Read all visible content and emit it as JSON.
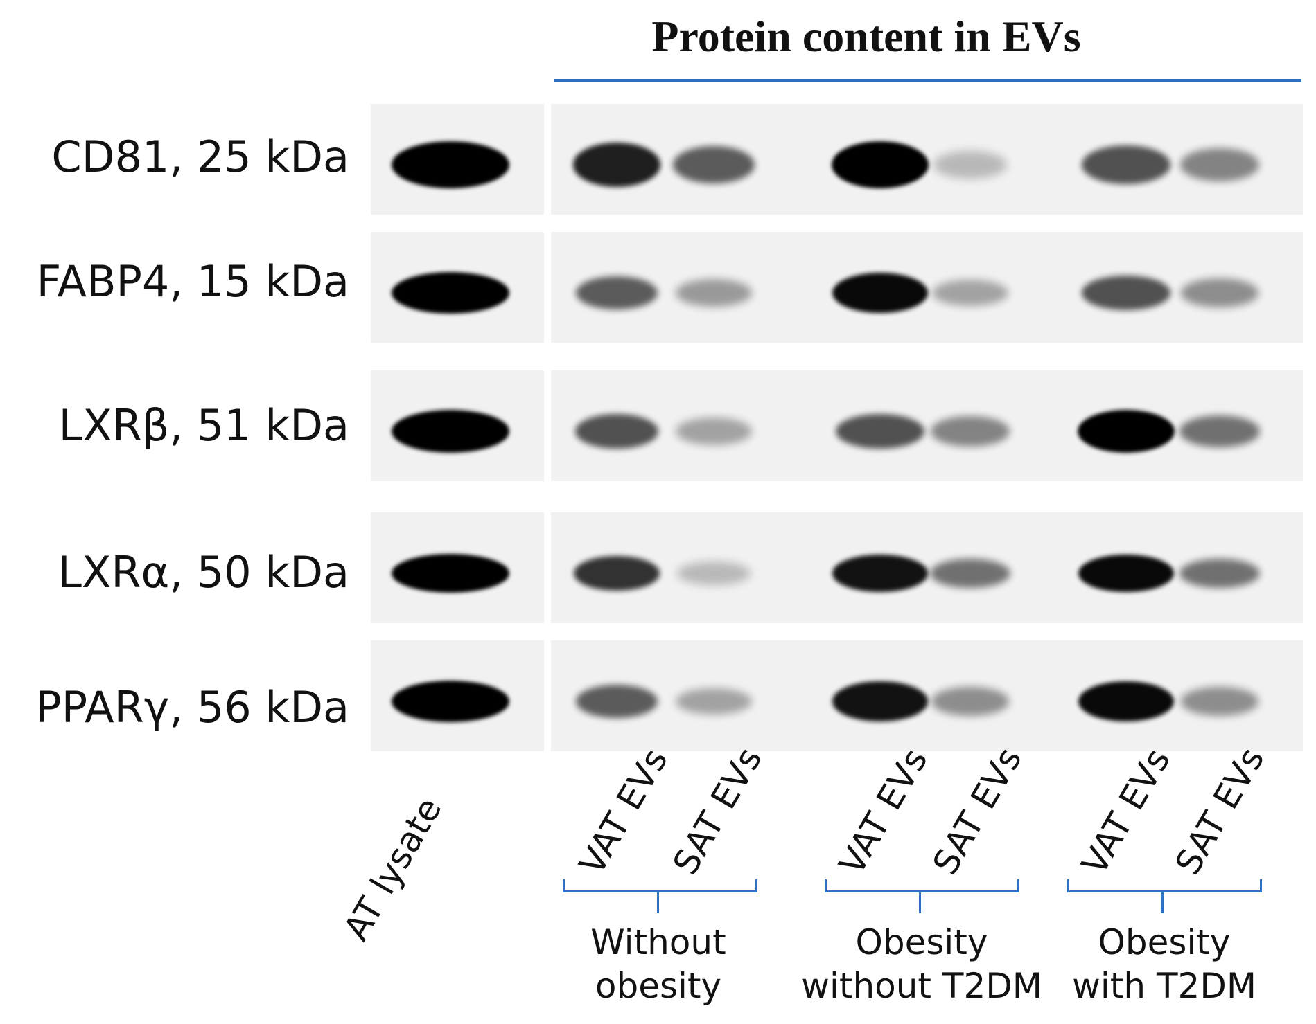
{
  "title": "Protein content in EVs",
  "colors": {
    "accent": "#2f6fc4",
    "band": "#000000",
    "membrane": "#f1f1f1"
  },
  "rows": [
    {
      "label": "CD81, 25 kDa"
    },
    {
      "label": "FABP4, 15 kDa"
    },
    {
      "label": "LXRβ, 51 kDa"
    },
    {
      "label": "LXRα, 50 kDa"
    },
    {
      "label": "PPARγ, 56 kDa"
    }
  ],
  "lanes": [
    {
      "label": "AT lysate"
    },
    {
      "label": "VAT EVs"
    },
    {
      "label": "SAT EVs"
    },
    {
      "label": "VAT EVs"
    },
    {
      "label": "SAT EVs"
    },
    {
      "label": "VAT EVs"
    },
    {
      "label": "SAT EVs"
    }
  ],
  "groups": [
    {
      "line1": "Without",
      "line2": "obesity"
    },
    {
      "line1": "Obesity",
      "line2": "without T2DM"
    },
    {
      "line1": "Obesity",
      "line2": "with T2DM"
    }
  ],
  "band_intensity": [
    [
      1.0,
      0.85,
      0.55,
      1.0,
      0.1,
      0.6,
      0.35
    ],
    [
      1.0,
      0.55,
      0.25,
      0.95,
      0.2,
      0.6,
      0.3
    ],
    [
      1.0,
      0.6,
      0.2,
      0.6,
      0.35,
      1.0,
      0.45
    ],
    [
      1.0,
      0.75,
      0.1,
      0.9,
      0.45,
      0.95,
      0.45
    ],
    [
      1.0,
      0.55,
      0.2,
      0.9,
      0.3,
      0.95,
      0.3
    ]
  ]
}
